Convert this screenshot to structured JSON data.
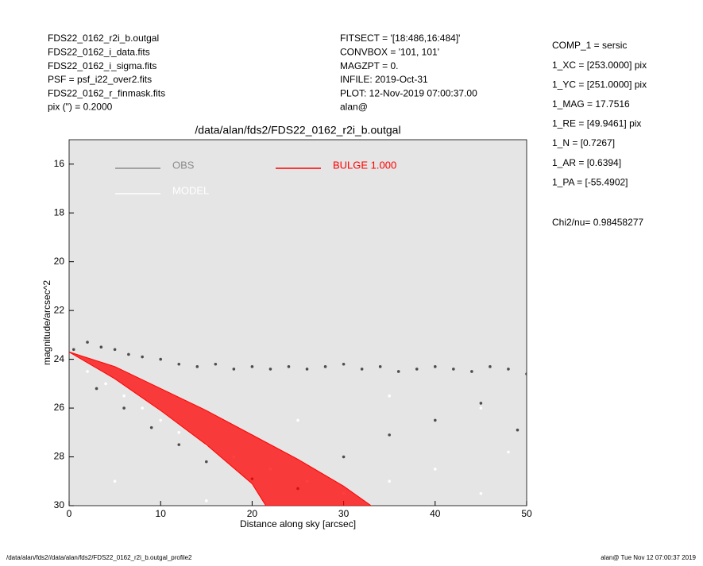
{
  "header": {
    "left": [
      "FDS22_0162_r2i_b.outgal",
      "FDS22_0162_i_data.fits",
      "FDS22_0162_i_sigma.fits",
      "PSF     = psf_i22_over2.fits",
      "FDS22_0162_r_finmask.fits",
      "pix (\") =  0.2000"
    ],
    "middle": [
      "FITSECT = '[18:486,16:484]'",
      "CONVBOX = '101, 101'",
      "MAGZPT  =                0.",
      "INFILE: 2019-Oct-31",
      "PLOT: 12-Nov-2019 07:00:37.00",
      "alan@"
    ],
    "params": [
      "COMP_1  = sersic",
      "1_XC    = [253.0000] pix",
      "1_YC    = [251.0000] pix",
      "1_MAG   = 17.7516",
      "1_RE    = [49.9461] pix",
      "1_N     = [0.7267]",
      "1_AR    = [0.6394]",
      "1_PA    = [-55.4902]"
    ],
    "chi2": "Chi2/nu=      0.98458277"
  },
  "footer": {
    "left": "/data/alan/fds2//data/alan/fds2/FDS22_0162_r2i_b.outgal_profile2",
    "right": "alan@   Tue Nov 12 07:00:37 2019"
  },
  "chart_data": {
    "type": "scatter",
    "title": "/data/alan/fds2/FDS22_0162_r2i_b.outgal",
    "xlabel": "Distance along sky [arcsec]",
    "ylabel": "magnitude/arcsec^2",
    "xlim": [
      0,
      50
    ],
    "ylim": [
      15,
      30
    ],
    "y_inverted": true,
    "xticks": [
      0,
      10,
      20,
      30,
      40,
      50
    ],
    "yticks": [
      16,
      18,
      20,
      22,
      24,
      26,
      28,
      30
    ],
    "background": "#e5e5e5",
    "series": [
      {
        "name": "OBS",
        "color": "#4d4d4d",
        "legend_color": "#8c8c8c",
        "style": "points",
        "x": [
          0.5,
          2,
          3.5,
          5,
          6.5,
          8,
          10,
          12,
          14,
          16,
          18,
          20,
          22,
          24,
          26,
          28,
          30,
          32,
          34,
          36,
          38,
          40,
          42,
          44,
          46,
          48,
          50,
          3,
          6,
          9,
          12,
          15,
          20,
          25,
          30,
          35,
          40,
          45,
          49
        ],
        "values": [
          23.6,
          23.3,
          23.5,
          23.6,
          23.8,
          23.9,
          24.0,
          24.2,
          24.3,
          24.2,
          24.4,
          24.3,
          24.4,
          24.3,
          24.4,
          24.3,
          24.2,
          24.4,
          24.3,
          24.5,
          24.4,
          24.3,
          24.4,
          24.5,
          24.3,
          24.4,
          24.6,
          25.2,
          26.0,
          26.8,
          27.5,
          28.2,
          28.9,
          29.3,
          28.0,
          27.1,
          26.5,
          25.8,
          26.9
        ]
      },
      {
        "name": "MODEL",
        "color": "#ffffff",
        "legend_color": "#ffffff",
        "style": "points",
        "x": [
          2,
          4,
          6,
          8,
          10,
          12,
          15,
          18,
          22,
          26,
          30,
          35,
          40,
          45,
          48,
          5,
          15,
          25,
          35,
          45
        ],
        "values": [
          24.5,
          25,
          25.5,
          26,
          26.5,
          27,
          27.5,
          28,
          28.5,
          29,
          29.5,
          29,
          28.5,
          29.5,
          27.8,
          29,
          29.8,
          26.5,
          25.5,
          26
        ]
      },
      {
        "name": "BULGE  1.000",
        "color": "#ff0000",
        "legend_color": "#ff0000",
        "style": "area",
        "x": [
          0,
          5,
          10,
          15,
          20,
          25,
          30,
          33,
          21.5,
          20,
          15,
          10,
          5,
          0
        ],
        "values": [
          23.7,
          24.3,
          25.2,
          26.1,
          27.1,
          28.1,
          29.2,
          30,
          30,
          29.1,
          27.5,
          26.1,
          24.8,
          23.7
        ]
      }
    ]
  }
}
